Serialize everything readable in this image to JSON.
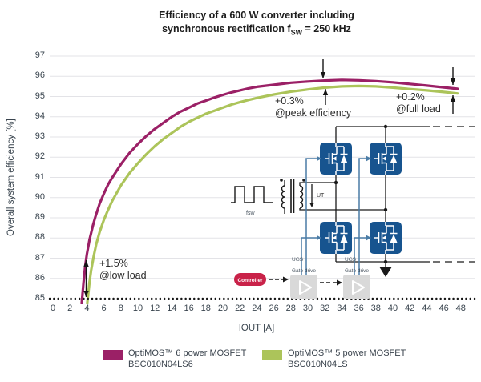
{
  "chart_data": {
    "type": "line",
    "title": "Efficiency of a 600 W converter including synchronous rectification fSW = 250 kHz",
    "title_line1": "Efficiency of a 600 W converter including",
    "title_line2_prefix": "synchronous rectification f",
    "title_line2_sub": "SW",
    "title_line2_suffix": " = 250 kHz",
    "xlabel": "IOUT [A]",
    "ylabel": "Overall system efficiency [%]",
    "xlim": [
      0,
      48
    ],
    "xtick_step": 2,
    "ylim": [
      85,
      97
    ],
    "ytick_step": 1,
    "grid": "horizontal",
    "legend_position": "bottom",
    "series": [
      {
        "name": "OptiMOS™ 6 power MOSFET",
        "part": "BSC010N04LS6",
        "color": "#9b2066",
        "points": [
          [
            3.4,
            84.8
          ],
          [
            3.6,
            85.8
          ],
          [
            3.8,
            86.6
          ],
          [
            4,
            87.2
          ],
          [
            4.3,
            87.9
          ],
          [
            4.7,
            88.6
          ],
          [
            5,
            89.05
          ],
          [
            5.5,
            89.7
          ],
          [
            6,
            90.2
          ],
          [
            6.5,
            90.65
          ],
          [
            7,
            91.0
          ],
          [
            8,
            91.65
          ],
          [
            9,
            92.2
          ],
          [
            10,
            92.65
          ],
          [
            11,
            93.05
          ],
          [
            12,
            93.4
          ],
          [
            13,
            93.7
          ],
          [
            14,
            94.0
          ],
          [
            15,
            94.25
          ],
          [
            16,
            94.45
          ],
          [
            17,
            94.65
          ],
          [
            18,
            94.8
          ],
          [
            19,
            94.95
          ],
          [
            20,
            95.08
          ],
          [
            21,
            95.2
          ],
          [
            22,
            95.3
          ],
          [
            23,
            95.4
          ],
          [
            24,
            95.48
          ],
          [
            26,
            95.58
          ],
          [
            28,
            95.68
          ],
          [
            30,
            95.74
          ],
          [
            32,
            95.79
          ],
          [
            34,
            95.82
          ],
          [
            36,
            95.8
          ],
          [
            38,
            95.76
          ],
          [
            40,
            95.7
          ],
          [
            42,
            95.62
          ],
          [
            44,
            95.54
          ],
          [
            46,
            95.45
          ],
          [
            47.6,
            95.38
          ]
        ]
      },
      {
        "name": "OptiMOS™ 5 power MOSFET",
        "part": "BSC010N04LS",
        "color": "#acc45a",
        "points": [
          [
            4.05,
            84.8
          ],
          [
            4.3,
            85.8
          ],
          [
            4.5,
            86.4
          ],
          [
            4.8,
            87.1
          ],
          [
            5.1,
            87.7
          ],
          [
            5.5,
            88.3
          ],
          [
            6,
            88.9
          ],
          [
            6.5,
            89.4
          ],
          [
            7,
            89.85
          ],
          [
            8,
            90.6
          ],
          [
            9,
            91.2
          ],
          [
            10,
            91.7
          ],
          [
            11,
            92.15
          ],
          [
            12,
            92.55
          ],
          [
            13,
            92.9
          ],
          [
            14,
            93.2
          ],
          [
            15,
            93.5
          ],
          [
            16,
            93.75
          ],
          [
            17,
            93.95
          ],
          [
            18,
            94.15
          ],
          [
            19,
            94.3
          ],
          [
            20,
            94.45
          ],
          [
            21,
            94.6
          ],
          [
            22,
            94.72
          ],
          [
            23,
            94.83
          ],
          [
            24,
            94.93
          ],
          [
            26,
            95.1
          ],
          [
            28,
            95.24
          ],
          [
            30,
            95.35
          ],
          [
            32,
            95.44
          ],
          [
            34,
            95.5
          ],
          [
            36,
            95.52
          ],
          [
            38,
            95.5
          ],
          [
            40,
            95.44
          ],
          [
            42,
            95.37
          ],
          [
            44,
            95.3
          ],
          [
            46,
            95.22
          ],
          [
            47.6,
            95.15
          ]
        ]
      }
    ],
    "annotations": [
      {
        "value": "+1.5%",
        "label": "@low load"
      },
      {
        "value": "+0.3%",
        "label": "@peak efficiency"
      },
      {
        "value": "+0.2%",
        "label": "@full load"
      }
    ]
  },
  "circuit": {
    "fsw_label": "fsw",
    "ut_label": "UT",
    "ugs_label": "UGS",
    "gate_drive_label": "Gate drive",
    "controller_label": "Controller"
  },
  "colors": {
    "grid": "#e3e3e7",
    "axis_dots": "#161616",
    "wire": "#1a1a1a",
    "mosfet_navy": "#17548f",
    "gate_blue": "#4a7ca6",
    "controller_red": "#c92249",
    "gate_drive_gray": "#d9d9d9"
  }
}
